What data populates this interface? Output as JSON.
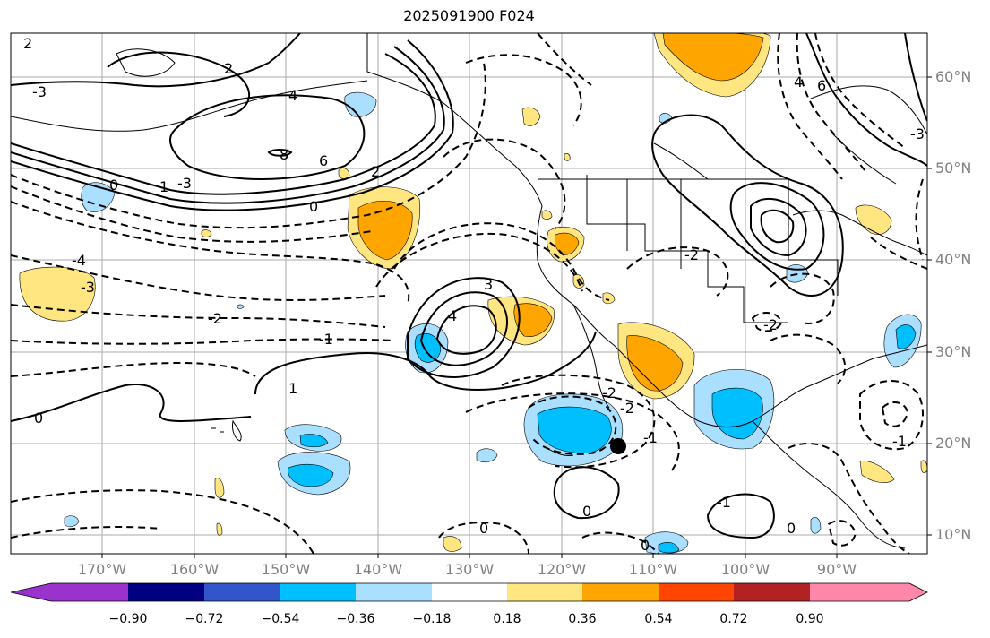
{
  "title": "2025091900 F024",
  "lat_labels": [
    "60°N",
    "50°N",
    "40°N",
    "30°N",
    "20°N",
    "10°N"
  ],
  "lon_labels": [
    "170°W",
    "160°W",
    "150°W",
    "140°W",
    "130°W",
    "120°W",
    "110°W",
    "100°W",
    "90°W"
  ],
  "colorbar": {
    "colors": [
      "#9933cc",
      "#000080",
      "#3355cc",
      "#00bfff",
      "#aadfff",
      "#ffffff",
      "#ffe680",
      "#ffa500",
      "#ff4500",
      "#b22222",
      "#ff88aa"
    ],
    "tick_labels": [
      "−0.90",
      "−0.72",
      "−0.54",
      "−0.36",
      "−0.18",
      "0.18",
      "0.36",
      "0.54",
      "0.72",
      "0.90"
    ]
  },
  "contour_labels": [
    "2",
    "2",
    "-3",
    "4",
    "6",
    "8",
    "0",
    "-3",
    "1",
    "-4",
    "-3",
    "-2",
    "-1",
    "0",
    "1",
    "3",
    "0",
    "-2",
    "-2",
    "-1",
    "2",
    "4",
    "-2",
    "0",
    "-2",
    "-1",
    "0",
    "0",
    "-1",
    "0",
    "-3",
    "6",
    "4"
  ],
  "marker": "storm-center"
}
